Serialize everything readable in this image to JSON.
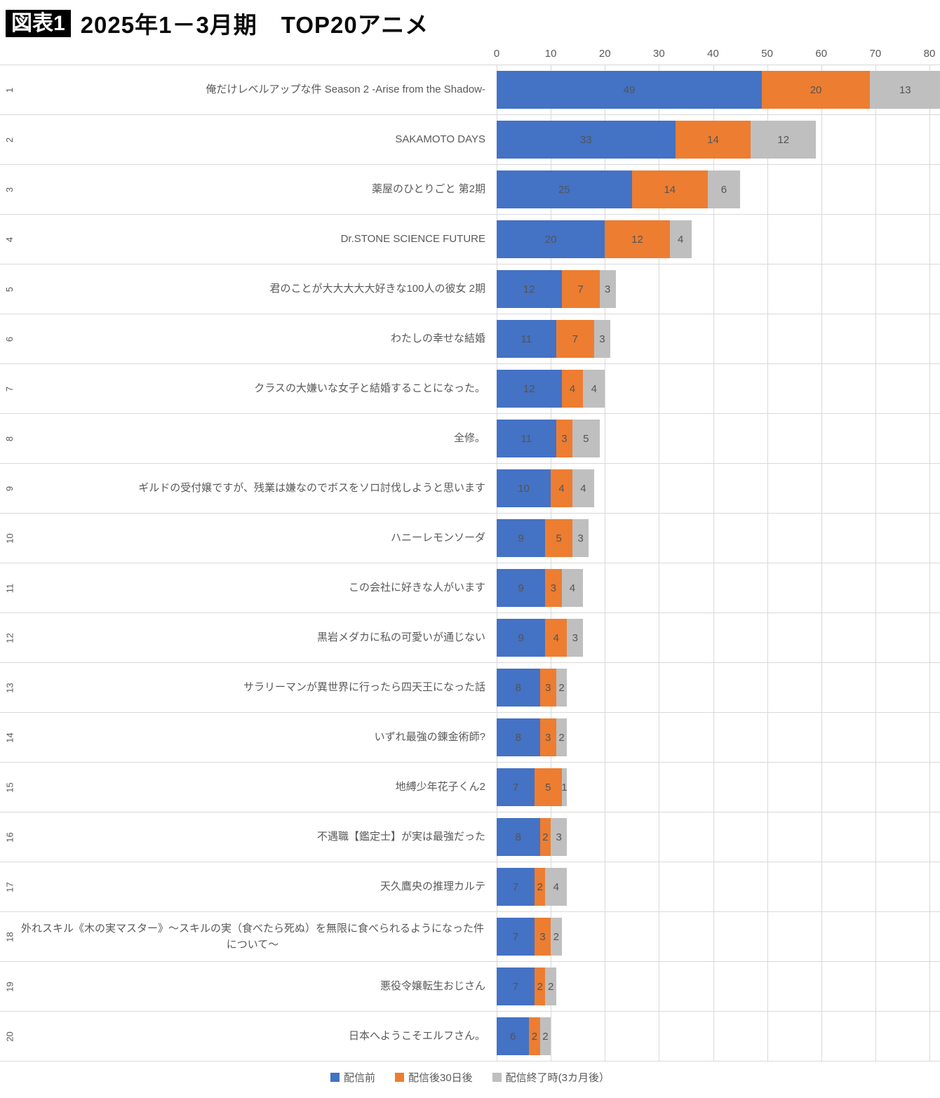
{
  "header": {
    "badge": "図表1",
    "title": "2025年1－3月期　TOP20アニメ"
  },
  "chart_data": {
    "type": "bar",
    "orientation": "horizontal",
    "stacked": true,
    "title": "2025年1－3月期　TOP20アニメ",
    "xlabel": "",
    "ylabel": "",
    "xlim": [
      0,
      80
    ],
    "x_ticks": [
      0,
      10,
      20,
      30,
      40,
      50,
      60,
      70,
      80
    ],
    "grid": true,
    "legend_position": "bottom",
    "series": [
      {
        "key": "pre",
        "name": "配信前",
        "color": "#4472C4"
      },
      {
        "key": "post30",
        "name": "配信後30日後",
        "color": "#ED7D31"
      },
      {
        "key": "end3m",
        "name": "配信終了時(3カ月後）",
        "color": "#BFBFBF"
      }
    ],
    "rows": [
      {
        "rank": 1,
        "title": "俺だけレベルアップな件 Season 2 -Arise from the Shadow-",
        "values": [
          49,
          20,
          13
        ]
      },
      {
        "rank": 2,
        "title": "SAKAMOTO DAYS",
        "values": [
          33,
          14,
          12
        ]
      },
      {
        "rank": 3,
        "title": "薬屋のひとりごと 第2期",
        "values": [
          25,
          14,
          6
        ]
      },
      {
        "rank": 4,
        "title": "Dr.STONE SCIENCE FUTURE",
        "values": [
          20,
          12,
          4
        ]
      },
      {
        "rank": 5,
        "title": "君のことが大大大大大好きな100人の彼女 2期",
        "values": [
          12,
          7,
          3
        ]
      },
      {
        "rank": 6,
        "title": "わたしの幸せな結婚",
        "values": [
          11,
          7,
          3
        ]
      },
      {
        "rank": 7,
        "title": "クラスの大嫌いな女子と結婚することになった。",
        "values": [
          12,
          4,
          4
        ]
      },
      {
        "rank": 8,
        "title": "全修。",
        "values": [
          11,
          3,
          5
        ]
      },
      {
        "rank": 9,
        "title": "ギルドの受付嬢ですが、残業は嫌なのでボスをソロ討伐しようと思います",
        "values": [
          10,
          4,
          4
        ]
      },
      {
        "rank": 10,
        "title": "ハニーレモンソーダ",
        "values": [
          9,
          5,
          3
        ]
      },
      {
        "rank": 11,
        "title": "この会社に好きな人がいます",
        "values": [
          9,
          3,
          4
        ]
      },
      {
        "rank": 12,
        "title": "黒岩メダカに私の可愛いが通じない",
        "values": [
          9,
          4,
          3
        ]
      },
      {
        "rank": 13,
        "title": "サラリーマンが異世界に行ったら四天王になった話",
        "values": [
          8,
          3,
          2
        ]
      },
      {
        "rank": 14,
        "title": "いずれ最強の錬金術師?",
        "values": [
          8,
          3,
          2
        ]
      },
      {
        "rank": 15,
        "title": "地縛少年花子くん2",
        "values": [
          7,
          5,
          1
        ]
      },
      {
        "rank": 16,
        "title": "不遇職【鑑定士】が実は最強だった",
        "values": [
          8,
          2,
          3
        ]
      },
      {
        "rank": 17,
        "title": "天久鷹央の推理カルテ",
        "values": [
          7,
          2,
          4
        ]
      },
      {
        "rank": 18,
        "title": "外れスキル《木の実マスター》～スキルの実（食べたら死ぬ）を無限に食べられるようになった件について～",
        "values": [
          7,
          3,
          2
        ]
      },
      {
        "rank": 19,
        "title": "悪役令嬢転生おじさん",
        "values": [
          7,
          2,
          2
        ]
      },
      {
        "rank": 20,
        "title": "日本へようこそエルフさん。",
        "values": [
          6,
          2,
          2
        ]
      }
    ]
  }
}
